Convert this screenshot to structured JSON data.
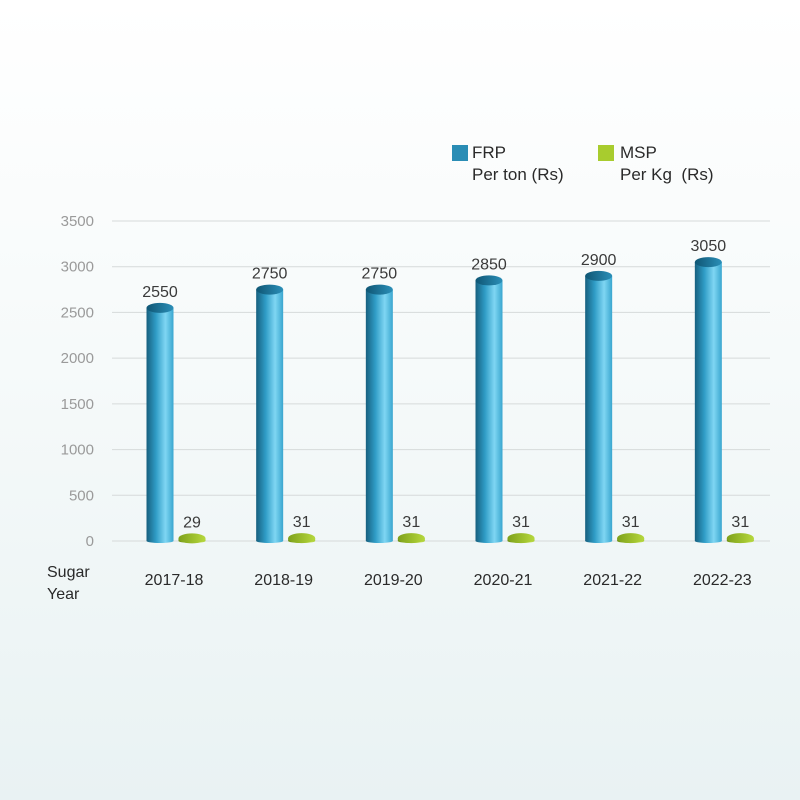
{
  "chart_data": {
    "type": "bar",
    "title": "",
    "xlabel": "Sugar Year",
    "ylabel": "",
    "ylim": [
      0,
      3500
    ],
    "yticks": [
      0,
      500,
      1000,
      1500,
      2000,
      2500,
      3000,
      3500
    ],
    "grid": true,
    "legend_position": "top-right",
    "categories": [
      "2017-18",
      "2018-19",
      "2019-20",
      "2020-21",
      "2021-22",
      "2022-23"
    ],
    "series": [
      {
        "name": "FRP Per ton (Rs)",
        "label_line1": "FRP",
        "label_line2": "Per ton (Rs)",
        "color": "#2a8db5",
        "values": [
          2550,
          2750,
          2750,
          2850,
          2900,
          3050
        ]
      },
      {
        "name": "MSP Per Kg (Rs)",
        "label_line1": "MSP",
        "label_line2": "Per Kg  (Rs)",
        "color": "#a8cc2e",
        "values": [
          29,
          31,
          31,
          31,
          31,
          31
        ]
      }
    ]
  },
  "xaxis_title": "Sugar Year"
}
